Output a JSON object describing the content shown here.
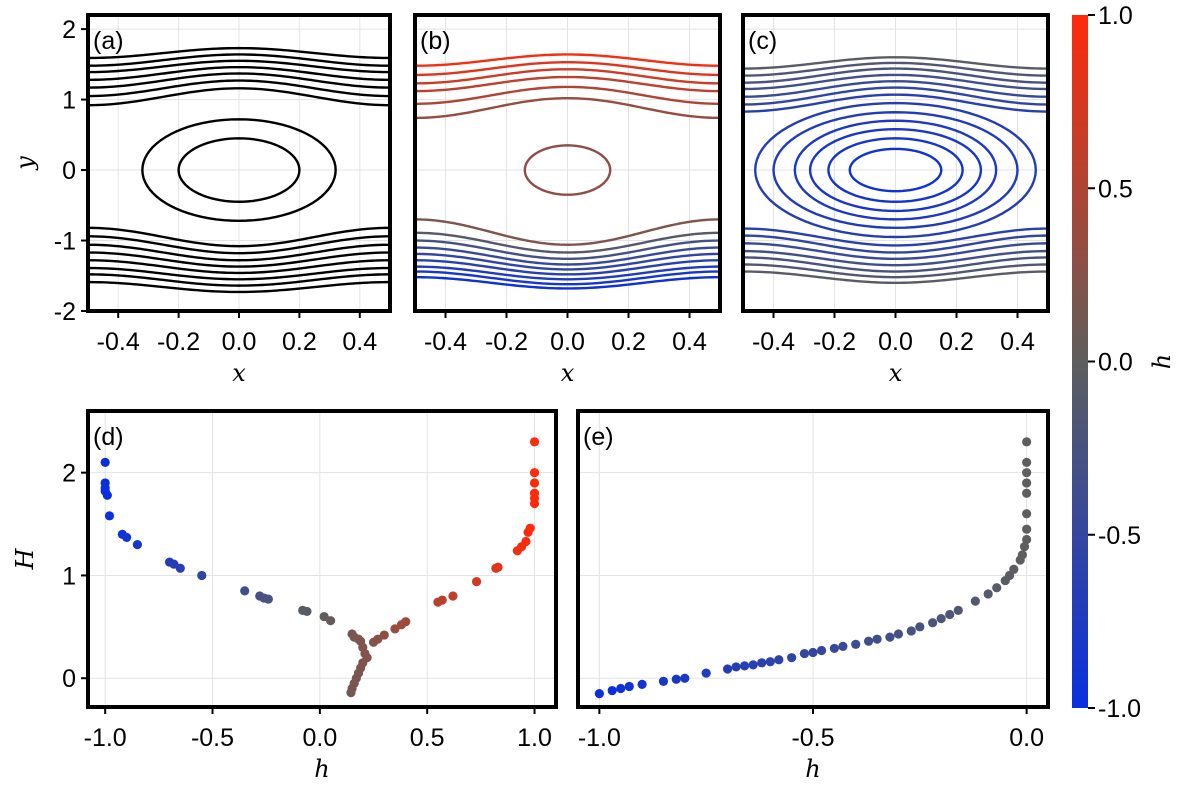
{
  "colorscale": {
    "low": "#0a2fe0",
    "mid": "#5e5e5e",
    "high": "#ff2a0a"
  },
  "chart_data": [
    {
      "id": "a",
      "type": "line",
      "panel_label": "(a)",
      "xlabel": "x",
      "ylabel": "y",
      "xlim": [
        -0.5,
        0.5
      ],
      "ylim": [
        -2,
        2.2
      ],
      "xticks": [
        -0.4,
        -0.2,
        0.0,
        0.2,
        0.4
      ],
      "xtick_labels": [
        "-0.4",
        "-0.2",
        "0.0",
        "0.2",
        "0.4"
      ],
      "yticks": [
        -2,
        -1,
        0,
        1,
        2
      ],
      "ytick_labels": [
        "-2",
        "-1",
        "0",
        "1",
        "2"
      ],
      "line_color": "#000000",
      "closed_orbits": [
        {
          "ry": 0.45,
          "rx": 0.2
        },
        {
          "ry": 0.72,
          "rx": 0.32
        }
      ],
      "open_orbits": [
        {
          "y0": 1.04,
          "amp": 0.12
        },
        {
          "y0": 1.16,
          "amp": 0.11
        },
        {
          "y0": 1.27,
          "amp": 0.1
        },
        {
          "y0": 1.37,
          "amp": 0.09
        },
        {
          "y0": 1.47,
          "amp": 0.08
        },
        {
          "y0": 1.56,
          "amp": 0.08
        },
        {
          "y0": 1.66,
          "amp": 0.07
        },
        {
          "y0": -0.95,
          "amp": -0.13
        },
        {
          "y0": -1.06,
          "amp": -0.12
        },
        {
          "y0": -1.17,
          "amp": -0.11
        },
        {
          "y0": -1.27,
          "amp": -0.1
        },
        {
          "y0": -1.37,
          "amp": -0.09
        },
        {
          "y0": -1.47,
          "amp": -0.08
        },
        {
          "y0": -1.56,
          "amp": -0.08
        },
        {
          "y0": -1.66,
          "amp": -0.07
        }
      ]
    },
    {
      "id": "b",
      "type": "line",
      "panel_label": "(b)",
      "xlabel": "x",
      "ylabel": "",
      "xlim": [
        -0.5,
        0.5
      ],
      "ylim": [
        -2,
        2.2
      ],
      "xticks": [
        -0.4,
        -0.2,
        0.0,
        0.2,
        0.4
      ],
      "xtick_labels": [
        "-0.4",
        "-0.2",
        "0.0",
        "0.2",
        "0.4"
      ],
      "yticks": [
        -2,
        -1,
        0,
        1,
        2
      ],
      "closed_orbits": [
        {
          "ry": 0.35,
          "rx": 0.14,
          "h": 0.3
        }
      ],
      "open_orbits": [
        {
          "y0": 0.88,
          "amp": 0.14,
          "h": 0.35
        },
        {
          "y0": 1.06,
          "amp": 0.12,
          "h": 0.5
        },
        {
          "y0": 1.22,
          "amp": 0.1,
          "h": 0.6
        },
        {
          "y0": 1.33,
          "amp": 0.1,
          "h": 0.7
        },
        {
          "y0": 1.44,
          "amp": 0.09,
          "h": 0.82
        },
        {
          "y0": 1.56,
          "amp": 0.08,
          "h": 0.95
        },
        {
          "y0": -0.88,
          "amp": -0.18,
          "h": 0.2
        },
        {
          "y0": -1.03,
          "amp": -0.14,
          "h": -0.1
        },
        {
          "y0": -1.13,
          "amp": -0.13,
          "h": -0.3
        },
        {
          "y0": -1.22,
          "amp": -0.12,
          "h": -0.45
        },
        {
          "y0": -1.3,
          "amp": -0.11,
          "h": -0.55
        },
        {
          "y0": -1.38,
          "amp": -0.1,
          "h": -0.65
        },
        {
          "y0": -1.46,
          "amp": -0.09,
          "h": -0.75
        },
        {
          "y0": -1.53,
          "amp": -0.09,
          "h": -0.85
        },
        {
          "y0": -1.6,
          "amp": -0.08,
          "h": -0.95
        }
      ]
    },
    {
      "id": "c",
      "type": "line",
      "panel_label": "(c)",
      "xlabel": "x",
      "ylabel": "",
      "xlim": [
        -0.5,
        0.5
      ],
      "ylim": [
        -2,
        2.2
      ],
      "xticks": [
        -0.4,
        -0.2,
        0.0,
        0.2,
        0.4
      ],
      "xtick_labels": [
        "-0.4",
        "-0.2",
        "0.0",
        "0.2",
        "0.4"
      ],
      "yticks": [
        -2,
        -1,
        0,
        1,
        2
      ],
      "closed_orbits": [
        {
          "ry": 0.3,
          "rx": 0.15,
          "h": -0.95
        },
        {
          "ry": 0.45,
          "rx": 0.22,
          "h": -0.9
        },
        {
          "ry": 0.58,
          "rx": 0.28,
          "h": -0.85
        },
        {
          "ry": 0.7,
          "rx": 0.33,
          "h": -0.8
        },
        {
          "ry": 0.82,
          "rx": 0.4,
          "h": -0.75
        },
        {
          "ry": 0.95,
          "rx": 0.46,
          "h": -0.7
        }
      ],
      "open_orbits": [
        {
          "y0": 0.95,
          "amp": 0.12,
          "h": -0.65
        },
        {
          "y0": 1.05,
          "amp": 0.12,
          "h": -0.55
        },
        {
          "y0": 1.15,
          "amp": 0.11,
          "h": -0.45
        },
        {
          "y0": 1.25,
          "amp": 0.1,
          "h": -0.35
        },
        {
          "y0": 1.34,
          "amp": 0.1,
          "h": -0.25
        },
        {
          "y0": 1.43,
          "amp": 0.09,
          "h": -0.15
        },
        {
          "y0": 1.52,
          "amp": 0.08,
          "h": -0.05
        },
        {
          "y0": -0.95,
          "amp": -0.12,
          "h": -0.65
        },
        {
          "y0": -1.05,
          "amp": -0.12,
          "h": -0.55
        },
        {
          "y0": -1.15,
          "amp": -0.11,
          "h": -0.45
        },
        {
          "y0": -1.25,
          "amp": -0.1,
          "h": -0.35
        },
        {
          "y0": -1.34,
          "amp": -0.1,
          "h": -0.25
        },
        {
          "y0": -1.43,
          "amp": -0.09,
          "h": -0.15
        },
        {
          "y0": -1.52,
          "amp": -0.08,
          "h": -0.05
        }
      ]
    },
    {
      "id": "d",
      "type": "scatter",
      "panel_label": "(d)",
      "xlabel": "h",
      "ylabel": "H",
      "xlim": [
        -1.08,
        1.1
      ],
      "ylim": [
        -0.28,
        2.6
      ],
      "xticks": [
        -1.0,
        -0.5,
        0.0,
        0.5,
        1.0
      ],
      "xtick_labels": [
        "-1.0",
        "-0.5",
        "0.0",
        "0.5",
        "1.0"
      ],
      "yticks": [
        0,
        1,
        2
      ],
      "ytick_labels": [
        "0",
        "1",
        "2"
      ],
      "points": [
        [
          -1.0,
          2.1
        ],
        [
          -1.0,
          1.9
        ],
        [
          -1.0,
          1.85
        ],
        [
          -1.0,
          1.82
        ],
        [
          -0.99,
          1.78
        ],
        [
          -0.98,
          1.58
        ],
        [
          -0.92,
          1.4
        ],
        [
          -0.9,
          1.37
        ],
        [
          -0.85,
          1.3
        ],
        [
          -0.7,
          1.13
        ],
        [
          -0.68,
          1.11
        ],
        [
          -0.65,
          1.07
        ],
        [
          -0.55,
          1.0
        ],
        [
          -0.35,
          0.85
        ],
        [
          -0.28,
          0.8
        ],
        [
          -0.26,
          0.78
        ],
        [
          -0.24,
          0.77
        ],
        [
          -0.08,
          0.66
        ],
        [
          -0.06,
          0.65
        ],
        [
          0.02,
          0.6
        ],
        [
          0.05,
          0.56
        ],
        [
          0.15,
          0.43
        ],
        [
          0.16,
          0.4
        ],
        [
          0.18,
          0.38
        ],
        [
          0.19,
          0.36
        ],
        [
          0.25,
          0.35
        ],
        [
          0.27,
          0.38
        ],
        [
          0.3,
          0.42
        ],
        [
          0.35,
          0.48
        ],
        [
          0.38,
          0.52
        ],
        [
          0.4,
          0.55
        ],
        [
          0.2,
          0.3
        ],
        [
          0.21,
          0.24
        ],
        [
          0.22,
          0.2
        ],
        [
          0.2,
          0.15
        ],
        [
          0.19,
          0.1
        ],
        [
          0.18,
          0.05
        ],
        [
          0.17,
          0.0
        ],
        [
          0.16,
          -0.05
        ],
        [
          0.15,
          -0.1
        ],
        [
          0.145,
          -0.14
        ],
        [
          0.55,
          0.74
        ],
        [
          0.57,
          0.76
        ],
        [
          0.62,
          0.8
        ],
        [
          0.73,
          0.94
        ],
        [
          0.82,
          1.07
        ],
        [
          0.83,
          1.08
        ],
        [
          0.92,
          1.24
        ],
        [
          0.94,
          1.28
        ],
        [
          0.96,
          1.33
        ],
        [
          0.97,
          1.42
        ],
        [
          0.98,
          1.46
        ],
        [
          1.0,
          1.7
        ],
        [
          1.0,
          1.75
        ],
        [
          1.0,
          1.8
        ],
        [
          1.0,
          1.9
        ],
        [
          1.0,
          2.0
        ],
        [
          1.0,
          2.3
        ]
      ]
    },
    {
      "id": "e",
      "type": "scatter",
      "panel_label": "(e)",
      "xlabel": "h",
      "ylabel": "",
      "xlim": [
        -1.05,
        0.05
      ],
      "ylim": [
        -0.28,
        2.6
      ],
      "xticks": [
        -1.0,
        -0.5,
        0.0
      ],
      "xtick_labels": [
        "-1.0",
        "-0.5",
        "0.0"
      ],
      "yticks": [
        0,
        1,
        2
      ],
      "points": [
        [
          -1.0,
          -0.15
        ],
        [
          -0.97,
          -0.12
        ],
        [
          -0.95,
          -0.1
        ],
        [
          -0.93,
          -0.08
        ],
        [
          -0.9,
          -0.06
        ],
        [
          -0.85,
          -0.03
        ],
        [
          -0.82,
          -0.01
        ],
        [
          -0.8,
          0.0
        ],
        [
          -0.75,
          0.05
        ],
        [
          -0.7,
          0.09
        ],
        [
          -0.68,
          0.11
        ],
        [
          -0.66,
          0.12
        ],
        [
          -0.64,
          0.13
        ],
        [
          -0.62,
          0.15
        ],
        [
          -0.6,
          0.16
        ],
        [
          -0.58,
          0.18
        ],
        [
          -0.55,
          0.2
        ],
        [
          -0.52,
          0.24
        ],
        [
          -0.5,
          0.25
        ],
        [
          -0.48,
          0.27
        ],
        [
          -0.45,
          0.29
        ],
        [
          -0.43,
          0.31
        ],
        [
          -0.4,
          0.33
        ],
        [
          -0.37,
          0.36
        ],
        [
          -0.35,
          0.38
        ],
        [
          -0.32,
          0.4
        ],
        [
          -0.3,
          0.43
        ],
        [
          -0.27,
          0.46
        ],
        [
          -0.25,
          0.5
        ],
        [
          -0.22,
          0.54
        ],
        [
          -0.2,
          0.58
        ],
        [
          -0.18,
          0.62
        ],
        [
          -0.16,
          0.66
        ],
        [
          -0.12,
          0.75
        ],
        [
          -0.09,
          0.82
        ],
        [
          -0.07,
          0.88
        ],
        [
          -0.05,
          0.95
        ],
        [
          -0.04,
          1.0
        ],
        [
          -0.03,
          1.06
        ],
        [
          -0.015,
          1.15
        ],
        [
          -0.01,
          1.2
        ],
        [
          -0.005,
          1.28
        ],
        [
          0.0,
          1.35
        ],
        [
          0.0,
          1.45
        ],
        [
          0.0,
          1.6
        ],
        [
          0.0,
          1.8
        ],
        [
          0.0,
          1.9
        ],
        [
          0.0,
          2.0
        ],
        [
          0.0,
          2.1
        ],
        [
          0.0,
          2.3
        ]
      ]
    }
  ],
  "colorbar": {
    "label": "h",
    "ticks": [
      -1.0,
      -0.5,
      0.0,
      0.5,
      1.0
    ],
    "tick_labels": [
      "-1.0",
      "-0.5",
      "0.0",
      "0.5",
      "1.0"
    ]
  }
}
